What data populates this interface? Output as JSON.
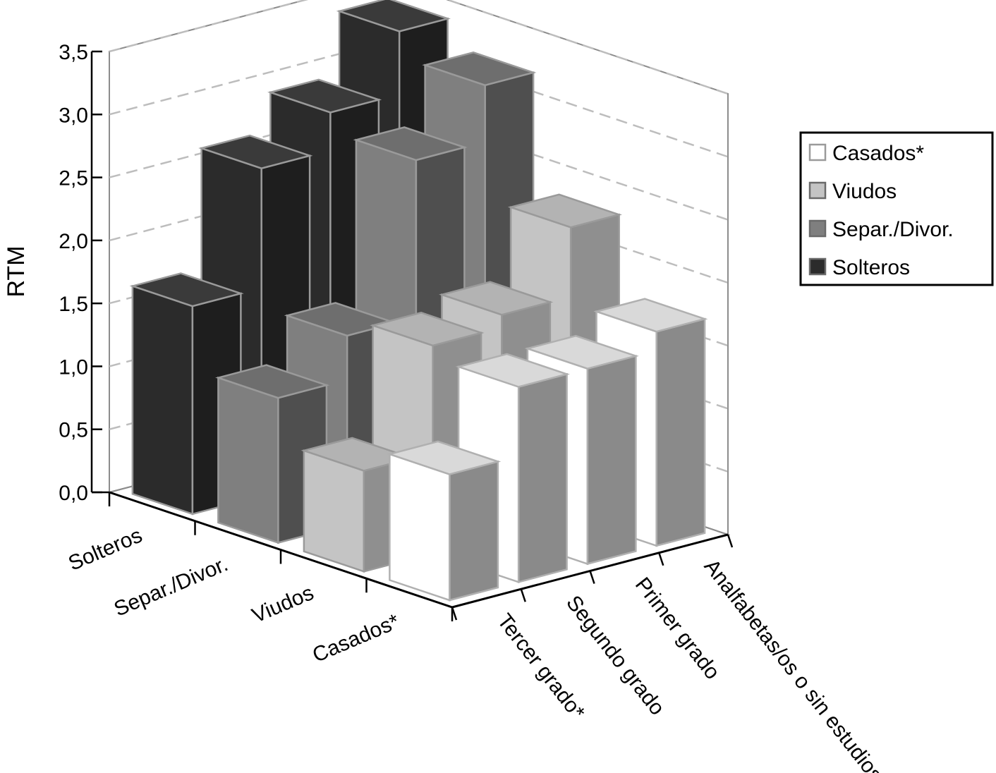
{
  "chart_data": {
    "type": "bar",
    "subtype": "3d-clustered-column",
    "ylabel": "RTM",
    "ylim": [
      0,
      3.5
    ],
    "yticks": [
      "0,0",
      "0,5",
      "1,0",
      "1,5",
      "2,0",
      "2,5",
      "3,0",
      "3,5"
    ],
    "grid": true,
    "legend_position": "right",
    "categories": [
      "Tercer grado*",
      "Segundo grado",
      "Primer grado",
      "Analfabetas/os o sin estudios"
    ],
    "series": [
      {
        "name": "Solteros",
        "color": "#2b2b2b",
        "values": [
          1.65,
          2.6,
          2.9,
          3.4
        ]
      },
      {
        "name": "Separ./Divor.",
        "color": "#7f7f7f",
        "values": [
          1.15,
          1.5,
          2.75,
          3.2
        ]
      },
      {
        "name": "Viudos",
        "color": "#c4c4c4",
        "values": [
          0.8,
          1.65,
          1.75,
          2.3
        ]
      },
      {
        "name": "Casados*",
        "color": "#ffffff",
        "values": [
          1.0,
          1.55,
          1.55,
          1.7
        ]
      }
    ],
    "legend_order": [
      "Casados*",
      "Viudos",
      "Separ./Divor.",
      "Solteros"
    ]
  }
}
